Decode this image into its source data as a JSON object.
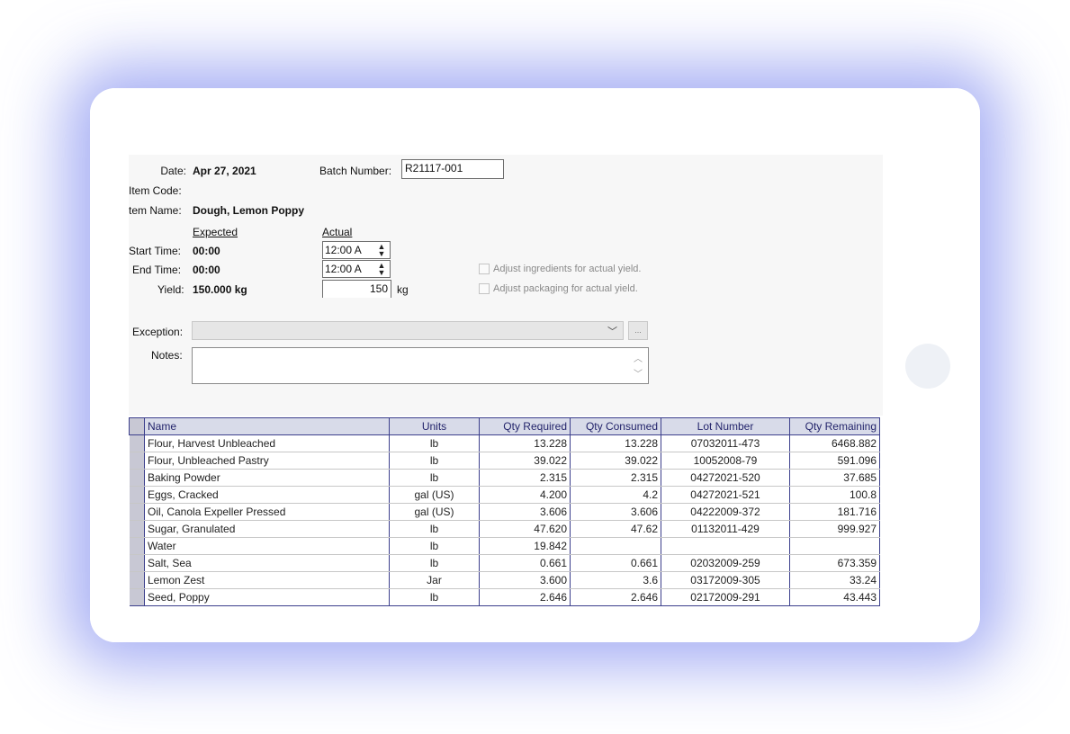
{
  "header": {
    "date_label": "Date:",
    "date_value": "Apr 27, 2021",
    "batch_label": "Batch Number:",
    "batch_value": "R21117-001",
    "item_code_label": "Item Code:",
    "item_name_label": "tem Name:",
    "item_name_value": "Dough, Lemon Poppy"
  },
  "times": {
    "expected_header": "Expected",
    "actual_header": "Actual",
    "start_label": "Start Time:",
    "start_expected": "00:00",
    "start_actual": "12:00 A",
    "end_label": "End Time:",
    "end_expected": "00:00",
    "end_actual": "12:00 A",
    "yield_label": "Yield:",
    "yield_expected": "150.000 kg",
    "yield_actual": "150",
    "yield_unit": "kg"
  },
  "options": {
    "adjust_ingredients": "Adjust ingredients for actual yield.",
    "adjust_packaging": "Adjust packaging for actual yield."
  },
  "exception": {
    "label": "Exception:",
    "value": "",
    "browse": "..."
  },
  "notes": {
    "label": "Notes:",
    "value": ""
  },
  "table": {
    "columns": [
      "Name",
      "Units",
      "Qty Required",
      "Qty Consumed",
      "Lot Number",
      "Qty Remaining"
    ],
    "rows": [
      [
        "Flour, Harvest Unbleached",
        "lb",
        "13.228",
        "13.228",
        "07032011-473",
        "6468.882"
      ],
      [
        "Flour, Unbleached Pastry",
        "lb",
        "39.022",
        "39.022",
        "10052008-79",
        "591.096"
      ],
      [
        "Baking Powder",
        "lb",
        "2.315",
        "2.315",
        "04272021-520",
        "37.685"
      ],
      [
        "Eggs, Cracked",
        "gal (US)",
        "4.200",
        "4.2",
        "04272021-521",
        "100.8"
      ],
      [
        "Oil, Canola Expeller Pressed",
        "gal (US)",
        "3.606",
        "3.606",
        "04222009-372",
        "181.716"
      ],
      [
        "Sugar, Granulated",
        "lb",
        "47.620",
        "47.62",
        "01132011-429",
        "999.927"
      ],
      [
        "Water",
        "lb",
        "19.842",
        "",
        "",
        ""
      ],
      [
        "Salt, Sea",
        "lb",
        "0.661",
        "0.661",
        "02032009-259",
        "673.359"
      ],
      [
        "Lemon Zest",
        "Jar",
        "3.600",
        "3.6",
        "03172009-305",
        "33.24"
      ],
      [
        "Seed, Poppy",
        "lb",
        "2.646",
        "2.646",
        "02172009-291",
        "43.443"
      ]
    ]
  }
}
